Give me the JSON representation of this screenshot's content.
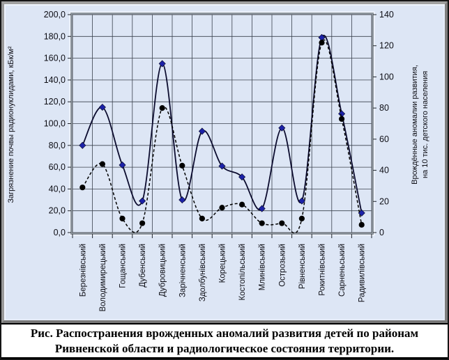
{
  "figure": {
    "caption_line1": "Рис. Распостранения врожденных аномалий развития детей по районам",
    "caption_line2": "Ривненской области и радиологическое состояния территории."
  },
  "chart_data": {
    "type": "line",
    "smoothed": true,
    "grid": true,
    "legend": "none",
    "categories": [
      "Березнівський",
      "Володимирецький",
      "Гощанський",
      "Дубенський",
      "Дубровицький",
      "Зарічненський",
      "Здолбунівський",
      "Корецький",
      "Костопільський",
      "Млинівський",
      "Острозький",
      "Рівненський",
      "Рокитнівський",
      "Сарненьський",
      "Радивилівський"
    ],
    "series": [
      {
        "name": "Загрязнение почвы радионуклидами, кБк/м²",
        "axis": "left",
        "marker": "diamond",
        "line_style": "solid",
        "color": "#1c22a8",
        "line_color": "#0b0b2e",
        "values": [
          80,
          115,
          62,
          29,
          155,
          30,
          93,
          61,
          51,
          22,
          96,
          29,
          179,
          109,
          18
        ]
      },
      {
        "name": "Врождённые аномалии развития, на 10 тис. детского населения",
        "axis": "right",
        "marker": "circle",
        "line_style": "dashed",
        "color": "#000000",
        "line_color": "#000000",
        "values": [
          29,
          44,
          9,
          6,
          80,
          43,
          9,
          16,
          18,
          6,
          6,
          9,
          122,
          73,
          5
        ]
      }
    ],
    "left_axis": {
      "title": "Загрязнение почвы радионуклидами, кБк/м²",
      "min": 0,
      "max": 200,
      "step": 20,
      "tick_labels": [
        "0,0",
        "20,0",
        "40,0",
        "60,0",
        "80,0",
        "100,0",
        "120,0",
        "140,0",
        "160,0",
        "180,0",
        "200,0"
      ]
    },
    "right_axis": {
      "title_line1": "Врождённые  аномалии развития,",
      "title_line2": "на 10 тис. детского населения",
      "min": 0,
      "max": 140,
      "step": 20,
      "tick_labels": [
        "0",
        "20",
        "40",
        "60",
        "80",
        "100",
        "120",
        "140"
      ]
    },
    "colors": {
      "plot_background": "#dde6f5",
      "frame_gray": "#8e8e8e",
      "gridline": "#3a414d",
      "axis_text": "#0d0d14"
    }
  }
}
